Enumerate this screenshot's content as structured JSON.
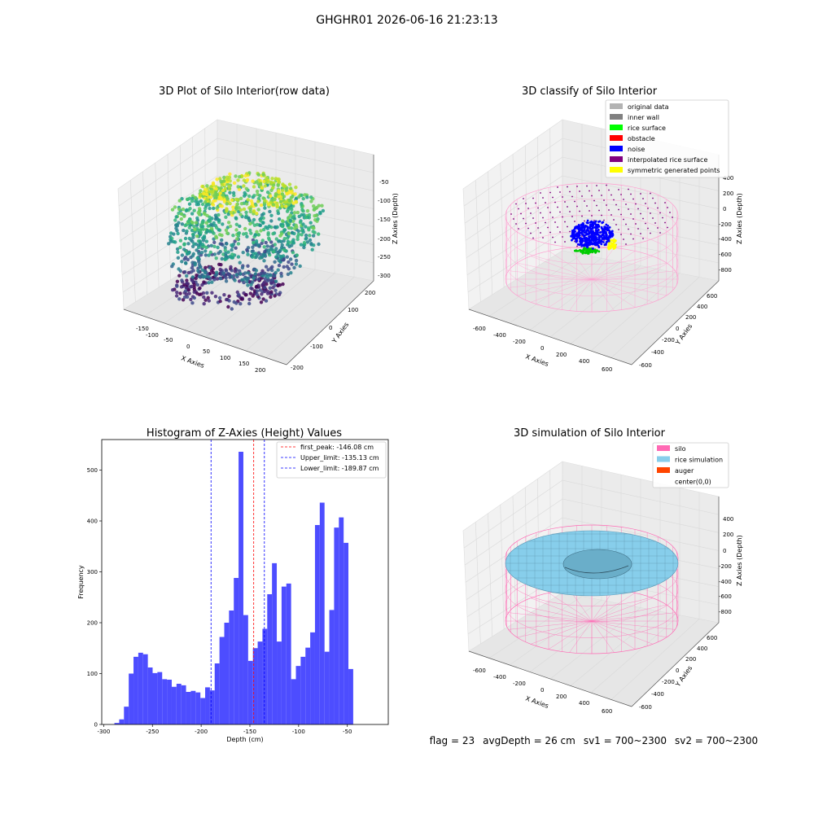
{
  "suptitle": "GHGHR01 2026-06-16 21:23:13",
  "status": {
    "flag": "flag = 23",
    "avg_depth": "avgDepth = 26 cm",
    "sv1": "sv1 = 700~2300",
    "sv2": "sv2 = 700~2300"
  },
  "panels": {
    "raw": {
      "title": "3D Plot of Silo Interior(row data)",
      "xlabel": "X Axies",
      "ylabel": "Y Axies",
      "zlabel": "Z Axies (Depth)",
      "xticks": [
        "-150",
        "-100",
        "-50",
        "0",
        "50",
        "100",
        "150",
        "200"
      ],
      "yticks": [
        "-200",
        "-100",
        "0",
        "100",
        "200"
      ],
      "zticks": [
        "-50",
        "-100",
        "-150",
        "-200",
        "-250",
        "-300"
      ]
    },
    "classify": {
      "title": "3D classify of Silo Interior",
      "xlabel": "X Axies",
      "ylabel": "Y Axies",
      "zlabel": "Z Axies (Depth)",
      "xticks": [
        "-600",
        "-400",
        "-200",
        "0",
        "200",
        "400",
        "600"
      ],
      "yticks": [
        "-600",
        "-400",
        "-200",
        "0",
        "200",
        "400",
        "600"
      ],
      "zticks": [
        "400",
        "200",
        "0",
        "-200",
        "-400",
        "-600",
        "-800"
      ],
      "legend": [
        {
          "label": "original data",
          "color": "#b3b3b3"
        },
        {
          "label": "inner wall",
          "color": "#808080"
        },
        {
          "label": "rice surface",
          "color": "#00ff00"
        },
        {
          "label": "obstacle",
          "color": "#ff0000"
        },
        {
          "label": "noise",
          "color": "#0000ff"
        },
        {
          "label": "interpolated rice surface",
          "color": "#800080"
        },
        {
          "label": "symmetric generated points",
          "color": "#ffff00"
        }
      ]
    },
    "simulation": {
      "title": "3D simulation of Silo Interior",
      "xlabel": "X Axies",
      "ylabel": "Y Axies",
      "zlabel": "Z Axies (Depth)",
      "xticks": [
        "-600",
        "-400",
        "-200",
        "0",
        "200",
        "400",
        "600"
      ],
      "yticks": [
        "-600",
        "-400",
        "-200",
        "0",
        "200",
        "400",
        "600"
      ],
      "zticks": [
        "400",
        "200",
        "0",
        "-200",
        "-400",
        "-600",
        "-800"
      ],
      "legend": [
        {
          "label": "silo",
          "color": "#ff69b4"
        },
        {
          "label": "rice simulation",
          "color": "#87ceeb"
        },
        {
          "label": "auger",
          "color": "#ff4500"
        },
        {
          "label": "center(0,0)",
          "color": ""
        }
      ]
    }
  },
  "chart_data": {
    "type": "bar",
    "title": "Histogram of Z-Axies (Height) Values",
    "xlabel": "Depth (cm)",
    "ylabel": "Frequency",
    "xlim": [
      -302,
      -8
    ],
    "ylim": [
      0,
      560
    ],
    "xticks": [
      -300,
      -250,
      -200,
      -150,
      -100,
      -50
    ],
    "yticks": [
      0,
      100,
      200,
      300,
      400,
      500
    ],
    "bar_color": "#4d4dff",
    "bin_width": 4.9,
    "bin_starts": [
      -289,
      -284.1,
      -279.2,
      -274.3,
      -269.4,
      -264.5,
      -259.6,
      -254.7,
      -249.8,
      -244.9,
      -240,
      -235.1,
      -230.2,
      -225.3,
      -220.4,
      -215.5,
      -210.6,
      -205.7,
      -200.8,
      -195.9,
      -191,
      -186.1,
      -181.2,
      -176.3,
      -171.4,
      -166.5,
      -161.6,
      -156.7,
      -151.8,
      -146.9,
      -142,
      -137.1,
      -132.2,
      -127.3,
      -122.4,
      -117.5,
      -112.6,
      -107.7,
      -102.8,
      -97.9,
      -93,
      -88.1,
      -83.2,
      -78.3,
      -73.4,
      -68.5,
      -63.6,
      -58.7,
      -53.8,
      -48.9,
      -44,
      -39.1,
      -34.2,
      -29.3,
      -24.4,
      -19.5
    ],
    "counts": [
      3,
      10,
      35,
      100,
      133,
      141,
      138,
      112,
      101,
      103,
      89,
      88,
      74,
      80,
      77,
      64,
      66,
      63,
      52,
      73,
      67,
      120,
      172,
      200,
      224,
      288,
      536,
      215,
      125,
      150,
      163,
      188,
      256,
      317,
      163,
      271,
      277,
      89,
      115,
      133,
      151,
      181,
      392,
      436,
      143,
      225,
      387,
      407,
      357,
      109,
      0,
      0,
      0,
      0,
      0,
      0
    ],
    "lines": [
      {
        "label": "first_peak: -146.08 cm",
        "x": -146.08,
        "color": "#ff0000"
      },
      {
        "label": "Upper_limit: -135.13 cm",
        "x": -135.13,
        "color": "#0000ff"
      },
      {
        "label": "Lower_limit: -189.87 cm",
        "x": -189.87,
        "color": "#0000ff"
      }
    ]
  }
}
